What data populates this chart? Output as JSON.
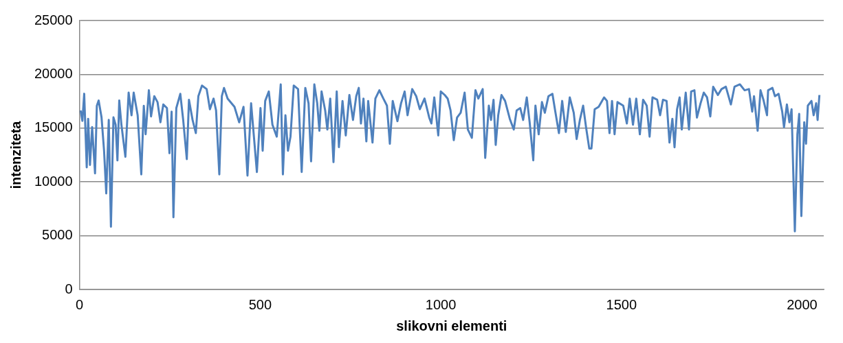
{
  "chart_data": {
    "type": "line",
    "xlabel": "slikovni elementi",
    "ylabel": "intenziteta",
    "xlim": [
      0,
      2060
    ],
    "xticks": [
      0,
      500,
      1000,
      1500,
      2000
    ],
    "ylim": [
      0,
      25000
    ],
    "yticks": [
      0,
      5000,
      10000,
      15000,
      20000,
      25000
    ],
    "grid": "y",
    "legend": false,
    "marker": "none",
    "line_style": "solid",
    "series": [
      {
        "color": "#4f81bd",
        "x": [
          3,
          8,
          13,
          20,
          24,
          29,
          35,
          43,
          48,
          53,
          61,
          68,
          74,
          81,
          87,
          94,
          100,
          105,
          110,
          116,
          127,
          136,
          144,
          150,
          161,
          171,
          178,
          183,
          192,
          198,
          207,
          216,
          224,
          232,
          242,
          249,
          255,
          260,
          268,
          279,
          287,
          297,
          303,
          313,
          322,
          329,
          339,
          352,
          361,
          371,
          378,
          387,
          394,
          400,
          410,
          429,
          442,
          454,
          465,
          475,
          491,
          501,
          507,
          514,
          524,
          534,
          546,
          557,
          563,
          570,
          577,
          584,
          593,
          605,
          615,
          625,
          634,
          641,
          650,
          658,
          664,
          670,
          680,
          686,
          694,
          703,
          712,
          718,
          728,
          737,
          747,
          757,
          766,
          773,
          779,
          786,
          794,
          799,
          811,
          819,
          830,
          841,
          851,
          859,
          867,
          880,
          890,
          900,
          908,
          921,
          932,
          942,
          955,
          968,
          974,
          982,
          993,
          1000,
          1011,
          1019,
          1027,
          1036,
          1045,
          1055,
          1066,
          1075,
          1086,
          1096,
          1104,
          1116,
          1123,
          1133,
          1139,
          1146,
          1152,
          1159,
          1168,
          1178,
          1191,
          1202,
          1210,
          1220,
          1228,
          1238,
          1246,
          1256,
          1262,
          1271,
          1280,
          1288,
          1298,
          1309,
          1317,
          1327,
          1336,
          1346,
          1357,
          1368,
          1376,
          1385,
          1394,
          1402,
          1411,
          1417,
          1426,
          1437,
          1452,
          1460,
          1467,
          1474,
          1481,
          1489,
          1505,
          1515,
          1523,
          1532,
          1541,
          1551,
          1560,
          1570,
          1578,
          1586,
          1599,
          1607,
          1615,
          1625,
          1633,
          1641,
          1647,
          1654,
          1661,
          1667,
          1678,
          1687,
          1693,
          1702,
          1709,
          1719,
          1728,
          1737,
          1746,
          1754,
          1767,
          1777,
          1789,
          1803,
          1813,
          1828,
          1841,
          1853,
          1862,
          1867,
          1877,
          1885,
          1893,
          1903,
          1906,
          1918,
          1925,
          1935,
          1945,
          1950,
          1958,
          1965,
          1971,
          1980,
          1987,
          1992,
          1998,
          2006,
          2011,
          2016,
          2026,
          2032,
          2039,
          2043,
          2048
        ],
        "values": [
          16650,
          15680,
          18200,
          11350,
          15870,
          11580,
          15100,
          10800,
          17080,
          17570,
          16000,
          12900,
          8930,
          15770,
          5840,
          16000,
          15320,
          12000,
          17570,
          15320,
          12340,
          18300,
          16200,
          18300,
          16200,
          10700,
          17080,
          14430,
          18520,
          16090,
          17970,
          17420,
          15540,
          17200,
          16870,
          12670,
          16540,
          6720,
          16870,
          18190,
          15760,
          12120,
          17640,
          15760,
          14540,
          17970,
          18960,
          18630,
          16760,
          17750,
          16650,
          10700,
          17970,
          18740,
          17750,
          16980,
          15540,
          16980,
          10590,
          17310,
          10920,
          16870,
          12900,
          17530,
          18410,
          15320,
          14210,
          19070,
          10700,
          16200,
          12900,
          14210,
          18960,
          18630,
          10920,
          18740,
          17310,
          11910,
          19070,
          17310,
          14760,
          18410,
          16650,
          14870,
          17750,
          11840,
          18410,
          13230,
          17530,
          14320,
          18080,
          15760,
          17970,
          18740,
          15430,
          17750,
          13770,
          17530,
          13660,
          17750,
          18520,
          17750,
          17090,
          13550,
          17530,
          15650,
          17310,
          18410,
          16200,
          18630,
          17970,
          16760,
          17750,
          15980,
          15430,
          17860,
          14320,
          18410,
          18080,
          17750,
          16650,
          13880,
          15980,
          16430,
          18300,
          14870,
          14100,
          18520,
          17750,
          18630,
          12230,
          17090,
          15760,
          17640,
          13440,
          16200,
          18080,
          17530,
          15870,
          14870,
          16650,
          16870,
          15760,
          17860,
          15540,
          12010,
          17090,
          14430,
          17420,
          16430,
          17970,
          18190,
          16540,
          14540,
          17530,
          14650,
          17860,
          16430,
          13990,
          15760,
          17090,
          15100,
          13110,
          13110,
          16760,
          16980,
          17860,
          17530,
          14540,
          17530,
          14430,
          17420,
          17090,
          15430,
          17750,
          15320,
          17750,
          14430,
          17640,
          17090,
          14210,
          17860,
          17640,
          16200,
          17640,
          17530,
          13660,
          15870,
          13220,
          16760,
          17860,
          14870,
          18300,
          14870,
          18410,
          18520,
          15980,
          17310,
          18300,
          17860,
          16090,
          18850,
          18080,
          18630,
          18850,
          17200,
          18850,
          19070,
          18520,
          18630,
          16540,
          17970,
          14760,
          18520,
          17640,
          16200,
          18520,
          18740,
          17970,
          18190,
          16540,
          15100,
          17200,
          15540,
          16760,
          5400,
          14430,
          16320,
          6830,
          15540,
          13550,
          17090,
          17530,
          16200,
          17310,
          15760,
          18080
        ]
      }
    ]
  }
}
